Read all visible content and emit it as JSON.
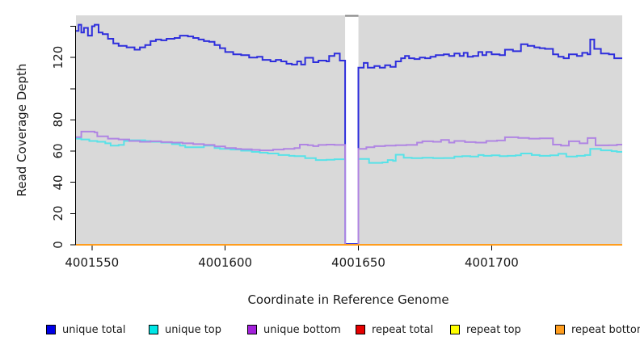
{
  "figure": {
    "background": "#ffffff",
    "panel_color": "#d9d9d9",
    "gap_cap_color": "#8a8a8a",
    "text_color": "#1a1a1a"
  },
  "axes": {
    "x": {
      "title": "Coordinate in Reference Genome",
      "ticks": [
        {
          "v": 4001550,
          "label": "4001550"
        },
        {
          "v": 4001600,
          "label": "4001600"
        },
        {
          "v": 4001650,
          "label": "4001650"
        },
        {
          "v": 4001700,
          "label": "4001700"
        }
      ]
    },
    "y": {
      "title": "Read Coverage Depth",
      "ticks": [
        {
          "v": 0,
          "label": "0"
        },
        {
          "v": 20,
          "label": "20"
        },
        {
          "v": 40,
          "label": "40"
        },
        {
          "v": 60,
          "label": "60"
        },
        {
          "v": 80,
          "label": "80"
        },
        {
          "v": 100,
          "label": ""
        },
        {
          "v": 120,
          "label": "120"
        },
        {
          "v": 140,
          "label": ""
        }
      ]
    }
  },
  "legend": {
    "items": [
      {
        "label": "unique total",
        "color": "#0000e6"
      },
      {
        "label": "unique top",
        "color": "#00e6e6"
      },
      {
        "label": "unique bottom",
        "color": "#a321db"
      },
      {
        "label": "repeat total",
        "color": "#e60000"
      },
      {
        "label": "repeat top",
        "color": "#ffff00"
      },
      {
        "label": "repeat bottom",
        "color": "#ff9d1e"
      }
    ]
  },
  "chart_data": {
    "type": "line",
    "step": true,
    "title": "",
    "xlabel": "Coordinate in Reference Genome",
    "ylabel": "Read Coverage Depth",
    "xlim": [
      4001544,
      4001749
    ],
    "ylim": [
      0,
      147
    ],
    "x_ticks": [
      4001550,
      4001600,
      4001650,
      4001700
    ],
    "y_ticks": [
      0,
      20,
      40,
      60,
      80,
      100,
      120,
      140
    ],
    "y_tick_labels_shown": [
      "0",
      "20",
      "40",
      "60",
      "80",
      "",
      "120",
      ""
    ],
    "grid": false,
    "legend_position": "bottom",
    "coverage_gap": {
      "x_start": 4001645,
      "x_end": 4001650,
      "note": "white strip; unique coverage drops to ~0"
    },
    "series": [
      {
        "name": "unique total",
        "color": "#2e2edc",
        "points": [
          [
            4001544,
            137
          ],
          [
            4001545,
            141
          ],
          [
            4001546,
            136
          ],
          [
            4001547,
            139
          ],
          [
            4001548.5,
            134
          ],
          [
            4001550,
            140
          ],
          [
            4001551,
            141
          ],
          [
            4001552.5,
            136
          ],
          [
            4001554,
            135
          ],
          [
            4001556,
            132
          ],
          [
            4001558,
            129
          ],
          [
            4001560,
            127.5
          ],
          [
            4001563,
            126.5
          ],
          [
            4001566,
            125
          ],
          [
            4001568,
            126.5
          ],
          [
            4001570,
            128
          ],
          [
            4001572,
            130.5
          ],
          [
            4001574,
            131.5
          ],
          [
            4001576,
            131
          ],
          [
            4001578,
            132
          ],
          [
            4001581,
            132.5
          ],
          [
            4001583,
            134
          ],
          [
            4001586,
            133.5
          ],
          [
            4001588,
            132.5
          ],
          [
            4001590,
            131.5
          ],
          [
            4001592,
            130.5
          ],
          [
            4001594,
            130
          ],
          [
            4001596,
            128
          ],
          [
            4001598,
            126
          ],
          [
            4001600,
            123.5
          ],
          [
            4001603,
            122
          ],
          [
            4001606,
            121.5
          ],
          [
            4001609,
            120
          ],
          [
            4001612,
            120.5
          ],
          [
            4001614,
            118.5
          ],
          [
            4001617,
            117.5
          ],
          [
            4001619,
            118.5
          ],
          [
            4001621,
            117.5
          ],
          [
            4001623,
            116
          ],
          [
            4001625,
            115.5
          ],
          [
            4001627,
            117.5
          ],
          [
            4001628.5,
            115.5
          ],
          [
            4001630,
            119.8
          ],
          [
            4001633,
            117
          ],
          [
            4001635,
            118
          ],
          [
            4001638,
            117.5
          ],
          [
            4001639,
            121
          ],
          [
            4001641,
            122.5
          ],
          [
            4001643,
            118
          ],
          [
            4001645,
            0.5
          ],
          [
            4001650,
            113.5
          ],
          [
            4001652,
            116.5
          ],
          [
            4001653.5,
            113.5
          ],
          [
            4001656,
            114.5
          ],
          [
            4001658,
            113.5
          ],
          [
            4001660,
            115
          ],
          [
            4001662,
            114
          ],
          [
            4001664,
            117.5
          ],
          [
            4001666,
            119.5
          ],
          [
            4001667.5,
            121
          ],
          [
            4001669,
            119.5
          ],
          [
            4001671,
            119
          ],
          [
            4001673,
            120
          ],
          [
            4001675,
            119.5
          ],
          [
            4001677,
            120.5
          ],
          [
            4001679,
            121.5
          ],
          [
            4001682,
            122
          ],
          [
            4001684,
            121
          ],
          [
            4001686,
            122.5
          ],
          [
            4001688,
            121
          ],
          [
            4001689.5,
            123
          ],
          [
            4001691,
            120.5
          ],
          [
            4001693,
            121
          ],
          [
            4001695,
            123.5
          ],
          [
            4001696.5,
            121.5
          ],
          [
            4001698,
            123.5
          ],
          [
            4001700,
            122
          ],
          [
            4001703,
            121.5
          ],
          [
            4001705,
            125
          ],
          [
            4001708,
            124
          ],
          [
            4001711,
            128.5
          ],
          [
            4001713.5,
            127.5
          ],
          [
            4001716,
            126.5
          ],
          [
            4001718,
            126
          ],
          [
            4001720,
            125.5
          ],
          [
            4001723,
            122
          ],
          [
            4001725,
            120.5
          ],
          [
            4001727,
            119.5
          ],
          [
            4001729,
            122
          ],
          [
            4001732,
            121
          ],
          [
            4001734,
            123
          ],
          [
            4001736,
            122
          ],
          [
            4001737,
            131.5
          ],
          [
            4001738.5,
            125.5
          ],
          [
            4001741,
            122.5
          ],
          [
            4001744,
            122
          ],
          [
            4001746,
            119.5
          ]
        ]
      },
      {
        "name": "unique top",
        "color": "#58e2e8",
        "points": [
          [
            4001544,
            68
          ],
          [
            4001546,
            67.5
          ],
          [
            4001549,
            66.5
          ],
          [
            4001552,
            66
          ],
          [
            4001555,
            65
          ],
          [
            4001557,
            63.5
          ],
          [
            4001560,
            64
          ],
          [
            4001562,
            66.5
          ],
          [
            4001564,
            67
          ],
          [
            4001570,
            66.5
          ],
          [
            4001572,
            66
          ],
          [
            4001576,
            65.5
          ],
          [
            4001580,
            64.5
          ],
          [
            4001583,
            63.5
          ],
          [
            4001585,
            62.5
          ],
          [
            4001590,
            62.5
          ],
          [
            4001592,
            63.5
          ],
          [
            4001596,
            62
          ],
          [
            4001598,
            61.5
          ],
          [
            4001602,
            61
          ],
          [
            4001606,
            60.3
          ],
          [
            4001610,
            59.5
          ],
          [
            4001613,
            59
          ],
          [
            4001616,
            58.5
          ],
          [
            4001620,
            57.5
          ],
          [
            4001624,
            57
          ],
          [
            4001626,
            56.8
          ],
          [
            4001630,
            55.5
          ],
          [
            4001634,
            54.3
          ],
          [
            4001638,
            54.5
          ],
          [
            4001641,
            54.8
          ],
          [
            4001645,
            0
          ],
          [
            4001650,
            55
          ],
          [
            4001654,
            52.5
          ],
          [
            4001659,
            52.8
          ],
          [
            4001661,
            54.3
          ],
          [
            4001663,
            53.8
          ],
          [
            4001664,
            57.7
          ],
          [
            4001667,
            55.8
          ],
          [
            4001670,
            55.5
          ],
          [
            4001674,
            55.8
          ],
          [
            4001678,
            55.5
          ],
          [
            4001682,
            55.6
          ],
          [
            4001686,
            56.5
          ],
          [
            4001689,
            56.8
          ],
          [
            4001692,
            56.5
          ],
          [
            4001695,
            57.5
          ],
          [
            4001697,
            57
          ],
          [
            4001700,
            57.3
          ],
          [
            4001703,
            56.8
          ],
          [
            4001706,
            57
          ],
          [
            4001709,
            57.3
          ],
          [
            4001711,
            58.5
          ],
          [
            4001715,
            57.5
          ],
          [
            4001718,
            57
          ],
          [
            4001722,
            57.3
          ],
          [
            4001725,
            58.3
          ],
          [
            4001728,
            56.5
          ],
          [
            4001732,
            57
          ],
          [
            4001735,
            57.5
          ],
          [
            4001737,
            61.5
          ],
          [
            4001741,
            60.5
          ],
          [
            4001745,
            60
          ],
          [
            4001747,
            59.5
          ]
        ]
      },
      {
        "name": "unique bottom",
        "color": "#b085e3",
        "points": [
          [
            4001544,
            69
          ],
          [
            4001546,
            72.5
          ],
          [
            4001551,
            72
          ],
          [
            4001552,
            69.5
          ],
          [
            4001556,
            68
          ],
          [
            4001560,
            67.5
          ],
          [
            4001564,
            66.5
          ],
          [
            4001568,
            66
          ],
          [
            4001572,
            66.3
          ],
          [
            4001576,
            65.8
          ],
          [
            4001580,
            65.5
          ],
          [
            4001584,
            65
          ],
          [
            4001588,
            64.5
          ],
          [
            4001592,
            64
          ],
          [
            4001596,
            63
          ],
          [
            4001600,
            62
          ],
          [
            4001604,
            61.5
          ],
          [
            4001606,
            61.2
          ],
          [
            4001610,
            60.8
          ],
          [
            4001613,
            60.5
          ],
          [
            4001618,
            61
          ],
          [
            4001622,
            61.5
          ],
          [
            4001626,
            62
          ],
          [
            4001628,
            64.2
          ],
          [
            4001631,
            63.8
          ],
          [
            4001633,
            63.2
          ],
          [
            4001635,
            64
          ],
          [
            4001638,
            64.2
          ],
          [
            4001641,
            64
          ],
          [
            4001645,
            0
          ],
          [
            4001650,
            61.5
          ],
          [
            4001653,
            62.5
          ],
          [
            4001656,
            63.2
          ],
          [
            4001660,
            63.5
          ],
          [
            4001664,
            63.8
          ],
          [
            4001668,
            64
          ],
          [
            4001672,
            65.5
          ],
          [
            4001674,
            66.3
          ],
          [
            4001678,
            66
          ],
          [
            4001681,
            67.2
          ],
          [
            4001684,
            65.5
          ],
          [
            4001686,
            66.5
          ],
          [
            4001690,
            65.8
          ],
          [
            4001694,
            65.5
          ],
          [
            4001698,
            66.5
          ],
          [
            4001702,
            66.8
          ],
          [
            4001705,
            68.9
          ],
          [
            4001710,
            68.5
          ],
          [
            4001714,
            68
          ],
          [
            4001718,
            68.2
          ],
          [
            4001723,
            64.2
          ],
          [
            4001726,
            63.5
          ],
          [
            4001729,
            66.3
          ],
          [
            4001733,
            65
          ],
          [
            4001736,
            68.4
          ],
          [
            4001739,
            63.7
          ],
          [
            4001744,
            63.8
          ],
          [
            4001747,
            64.2
          ]
        ]
      },
      {
        "name": "repeat total",
        "color": "#e60000",
        "points": [
          [
            4001544,
            0
          ],
          [
            4001749,
            0
          ]
        ]
      },
      {
        "name": "repeat top",
        "color": "#ffff00",
        "points": [
          [
            4001544,
            0
          ],
          [
            4001749,
            0
          ]
        ]
      },
      {
        "name": "repeat bottom",
        "color": "#ff9d1e",
        "points": [
          [
            4001544,
            0
          ],
          [
            4001749,
            0
          ]
        ]
      }
    ]
  }
}
